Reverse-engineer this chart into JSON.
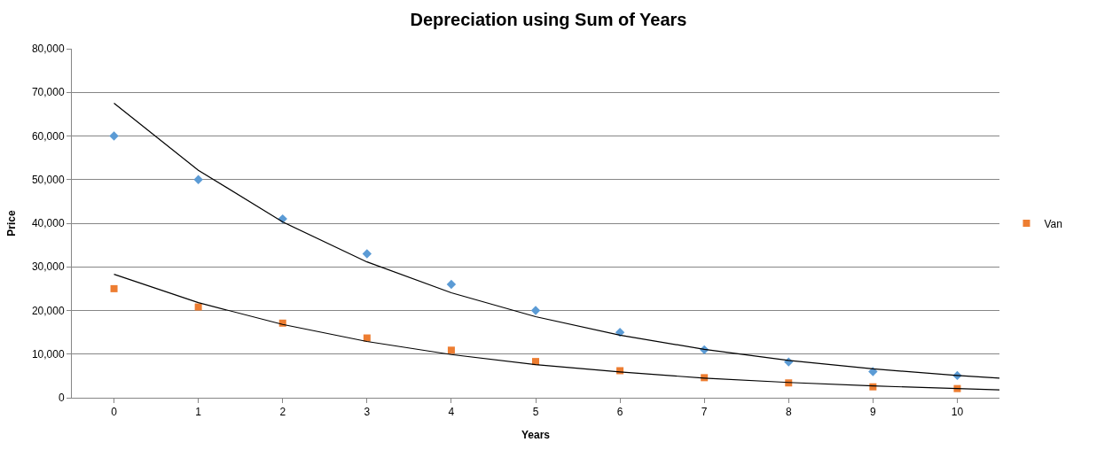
{
  "chart_data": {
    "type": "scatter",
    "title": "Depreciation using Sum of Years",
    "xlabel": "Years",
    "ylabel": "Price",
    "x": [
      0,
      1,
      2,
      3,
      4,
      5,
      6,
      7,
      8,
      9,
      10
    ],
    "series": [
      {
        "color": "#5b9bd5",
        "marker": "diamond",
        "values": [
          60000,
          50000,
          41000,
          33000,
          26000,
          20000,
          15000,
          11000,
          8200,
          6000,
          5100
        ]
      },
      {
        "name": "Van",
        "color": "#ed7d31",
        "marker": "square",
        "values": [
          25000,
          20800,
          17100,
          13700,
          10900,
          8300,
          6200,
          4600,
          3400,
          2500,
          2100
        ]
      },
      {
        "type": "line",
        "color": "#000000",
        "marker": "none",
        "x": [
          0,
          1,
          2,
          3,
          4,
          5,
          6,
          7,
          8,
          9,
          10,
          10.5
        ],
        "values": [
          67500,
          52150,
          40290,
          31130,
          24050,
          18580,
          14350,
          11090,
          8570,
          6620,
          5110,
          4500
        ]
      },
      {
        "type": "line",
        "color": "#000000",
        "marker": "none",
        "x": [
          0,
          1,
          2,
          3,
          4,
          5,
          6,
          7,
          8,
          9,
          10,
          10.5
        ],
        "values": [
          28300,
          21800,
          16800,
          12900,
          9900,
          7600,
          5900,
          4500,
          3500,
          2700,
          2100,
          1800
        ]
      }
    ],
    "xlim": [
      -0.5,
      10.5
    ],
    "xticks": [
      0,
      1,
      2,
      3,
      4,
      5,
      6,
      7,
      8,
      9,
      10
    ],
    "ylim": [
      0,
      80000
    ],
    "yticks": [
      {
        "value": 0,
        "label": "0"
      },
      {
        "value": 10000,
        "label": "10,000"
      },
      {
        "value": 20000,
        "label": "20,000"
      },
      {
        "value": 30000,
        "label": "30,000"
      },
      {
        "value": 40000,
        "label": "40,000"
      },
      {
        "value": 50000,
        "label": "50,000"
      },
      {
        "value": 60000,
        "label": "60,000"
      },
      {
        "value": 70000,
        "label": "70,000"
      },
      {
        "value": 80000,
        "label": "80,000"
      }
    ],
    "grid": "y",
    "legend": "right"
  }
}
